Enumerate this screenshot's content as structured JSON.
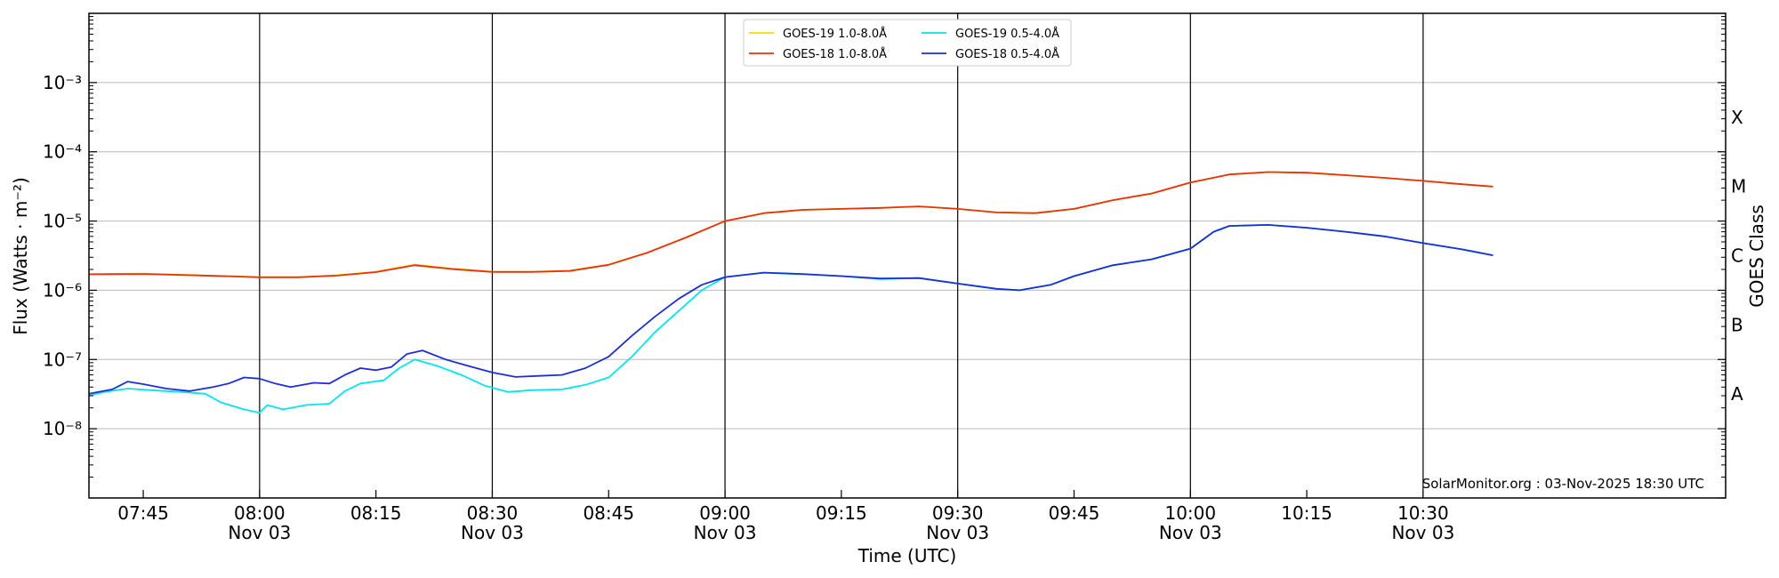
{
  "chart_data": {
    "type": "line",
    "ylabel": "Flux (Watts · m⁻²)",
    "xlabel": "Time (UTC)",
    "right_ylabel": "GOES Class",
    "credit": "SolarMonitor.org : 03-Nov-2025 18:30 UTC",
    "y_scale": "log",
    "ylim": [
      1e-09,
      0.01
    ],
    "xlim": [
      "07:38",
      "11:09"
    ],
    "grid": "horizontal at decades",
    "legend_placement": "top-center",
    "y_ticks": [
      {
        "value": 1e-08,
        "label": "10⁻⁸"
      },
      {
        "value": 1e-07,
        "label": "10⁻⁷"
      },
      {
        "value": 1e-06,
        "label": "10⁻⁶"
      },
      {
        "value": 1e-05,
        "label": "10⁻⁵"
      },
      {
        "value": 0.0001,
        "label": "10⁻⁴"
      },
      {
        "value": 0.001,
        "label": "10⁻³"
      }
    ],
    "goes_classes": [
      {
        "label": "A",
        "value": 3.16e-08
      },
      {
        "label": "B",
        "value": 3.16e-07
      },
      {
        "label": "C",
        "value": 3.16e-06
      },
      {
        "label": "M",
        "value": 3.16e-05
      },
      {
        "label": "X",
        "value": 0.000316
      }
    ],
    "x_ticks": [
      {
        "time": "07:45",
        "label": "07:45",
        "sub": "",
        "day_line": false
      },
      {
        "time": "08:00",
        "label": "08:00",
        "sub": "Nov 03",
        "day_line": true
      },
      {
        "time": "08:15",
        "label": "08:15",
        "sub": "",
        "day_line": false
      },
      {
        "time": "08:30",
        "label": "08:30",
        "sub": "Nov 03",
        "day_line": true
      },
      {
        "time": "08:45",
        "label": "08:45",
        "sub": "",
        "day_line": false
      },
      {
        "time": "09:00",
        "label": "09:00",
        "sub": "Nov 03",
        "day_line": true
      },
      {
        "time": "09:15",
        "label": "09:15",
        "sub": "",
        "day_line": false
      },
      {
        "time": "09:30",
        "label": "09:30",
        "sub": "Nov 03",
        "day_line": true
      },
      {
        "time": "09:45",
        "label": "09:45",
        "sub": "",
        "day_line": false
      },
      {
        "time": "10:00",
        "label": "10:00",
        "sub": "Nov 03",
        "day_line": true
      },
      {
        "time": "10:15",
        "label": "10:15",
        "sub": "",
        "day_line": false
      },
      {
        "time": "10:30",
        "label": "10:30",
        "sub": "Nov 03",
        "day_line": true
      }
    ],
    "series": [
      {
        "name": "GOES-19 1.0-8.0Å",
        "color": "#ffd700",
        "x": [
          "07:38",
          "07:45",
          "07:52",
          "08:00",
          "08:05",
          "08:10",
          "08:15",
          "08:20",
          "08:25",
          "08:30",
          "08:35",
          "08:40",
          "08:45",
          "08:50",
          "08:55",
          "09:00",
          "09:05",
          "09:10",
          "09:15",
          "09:20",
          "09:25",
          "09:30",
          "09:35",
          "09:40",
          "09:45",
          "09:50",
          "09:55",
          "10:00",
          "10:05",
          "10:10",
          "10:15",
          "10:20",
          "10:25",
          "10:30",
          "10:35",
          "10:39"
        ],
        "values": [
          1.72e-06,
          1.74e-06,
          1.65e-06,
          1.55e-06,
          1.55e-06,
          1.65e-06,
          1.85e-06,
          2.35e-06,
          2.05e-06,
          1.85e-06,
          1.85e-06,
          1.92e-06,
          2.35e-06,
          3.5e-06,
          5.8e-06,
          1e-05,
          1.3e-05,
          1.45e-05,
          1.5e-05,
          1.55e-05,
          1.63e-05,
          1.5e-05,
          1.33e-05,
          1.3e-05,
          1.5e-05,
          2e-05,
          2.5e-05,
          3.6e-05,
          4.7e-05,
          5.1e-05,
          5e-05,
          4.6e-05,
          4.2e-05,
          3.8e-05,
          3.4e-05,
          3.15e-05
        ]
      },
      {
        "name": "GOES-18 1.0-8.0Å",
        "color": "#e8320c",
        "x": [
          "07:38",
          "07:45",
          "07:52",
          "08:00",
          "08:05",
          "08:10",
          "08:15",
          "08:20",
          "08:25",
          "08:30",
          "08:35",
          "08:40",
          "08:45",
          "08:50",
          "08:55",
          "09:00",
          "09:05",
          "09:10",
          "09:15",
          "09:20",
          "09:25",
          "09:30",
          "09:35",
          "09:40",
          "09:45",
          "09:50",
          "09:55",
          "10:00",
          "10:05",
          "10:10",
          "10:15",
          "10:20",
          "10:25",
          "10:30",
          "10:35",
          "10:39"
        ],
        "values": [
          1.7e-06,
          1.72e-06,
          1.64e-06,
          1.54e-06,
          1.54e-06,
          1.63e-06,
          1.83e-06,
          2.3e-06,
          2.02e-06,
          1.84e-06,
          1.84e-06,
          1.9e-06,
          2.33e-06,
          3.5e-06,
          5.8e-06,
          1e-05,
          1.3e-05,
          1.45e-05,
          1.5e-05,
          1.55e-05,
          1.63e-05,
          1.5e-05,
          1.33e-05,
          1.3e-05,
          1.5e-05,
          2e-05,
          2.5e-05,
          3.6e-05,
          4.7e-05,
          5.1e-05,
          5e-05,
          4.6e-05,
          4.2e-05,
          3.8e-05,
          3.4e-05,
          3.15e-05
        ]
      },
      {
        "name": "GOES-19 0.5-4.0Å",
        "color": "#00e5ee",
        "x": [
          "07:38",
          "07:40",
          "07:43",
          "07:46",
          "07:50",
          "07:53",
          "07:55",
          "07:58",
          "08:00",
          "08:01",
          "08:03",
          "08:06",
          "08:09",
          "08:11",
          "08:13",
          "08:16",
          "08:18",
          "08:20",
          "08:23",
          "08:26",
          "08:29",
          "08:32",
          "08:35",
          "08:39",
          "08:42",
          "08:45",
          "08:48",
          "08:51",
          "08:54",
          "08:57",
          "09:00",
          "09:05",
          "09:10",
          "09:15",
          "09:20",
          "09:25",
          "09:30",
          "09:35",
          "09:38",
          "09:42",
          "09:45",
          "09:50",
          "09:55",
          "10:00",
          "10:03",
          "10:05",
          "10:10",
          "10:15",
          "10:20",
          "10:25",
          "10:30",
          "10:35",
          "10:39"
        ],
        "values": [
          3e-08,
          3.4e-08,
          3.8e-08,
          3.6e-08,
          3.4e-08,
          3.2e-08,
          2.4e-08,
          1.9e-08,
          1.7e-08,
          2.2e-08,
          1.9e-08,
          2.2e-08,
          2.3e-08,
          3.5e-08,
          4.5e-08,
          5e-08,
          7.5e-08,
          1e-07,
          8e-08,
          6e-08,
          4.2e-08,
          3.4e-08,
          3.6e-08,
          3.7e-08,
          4.3e-08,
          5.5e-08,
          1.1e-07,
          2.5e-07,
          5e-07,
          1e-06,
          1.55e-06,
          1.8e-06,
          1.7e-06,
          1.6e-06,
          1.45e-06,
          1.5e-06,
          1.25e-06,
          1.05e-06,
          1e-06,
          1.2e-06,
          1.6e-06,
          2.3e-06,
          2.8e-06,
          4e-06,
          7e-06,
          8.5e-06,
          8.8e-06,
          8e-06,
          7e-06,
          6e-06,
          4.8e-06,
          3.9e-06,
          3.2e-06
        ]
      },
      {
        "name": "GOES-18 0.5-4.0Å",
        "color": "#1e2ed6",
        "x": [
          "07:38",
          "07:41",
          "07:43",
          "07:45",
          "07:48",
          "07:51",
          "07:54",
          "07:56",
          "07:58",
          "08:00",
          "08:02",
          "08:04",
          "08:07",
          "08:09",
          "08:11",
          "08:13",
          "08:15",
          "08:17",
          "08:19",
          "08:21",
          "08:24",
          "08:27",
          "08:30",
          "08:33",
          "08:36",
          "08:39",
          "08:42",
          "08:45",
          "08:48",
          "08:51",
          "08:54",
          "08:57",
          "09:00",
          "09:05",
          "09:10",
          "09:15",
          "09:20",
          "09:25",
          "09:30",
          "09:35",
          "09:38",
          "09:42",
          "09:45",
          "09:50",
          "09:55",
          "10:00",
          "10:03",
          "10:05",
          "10:10",
          "10:15",
          "10:20",
          "10:25",
          "10:30",
          "10:35",
          "10:39"
        ],
        "values": [
          3.2e-08,
          3.7e-08,
          4.8e-08,
          4.4e-08,
          3.8e-08,
          3.5e-08,
          4e-08,
          4.5e-08,
          5.5e-08,
          5.3e-08,
          4.5e-08,
          4e-08,
          4.6e-08,
          4.5e-08,
          6e-08,
          7.5e-08,
          7e-08,
          7.8e-08,
          1.2e-07,
          1.35e-07,
          1e-07,
          8e-08,
          6.5e-08,
          5.6e-08,
          5.8e-08,
          6e-08,
          7.5e-08,
          1.1e-07,
          2.2e-07,
          4.2e-07,
          7.5e-07,
          1.2e-06,
          1.55e-06,
          1.8e-06,
          1.72e-06,
          1.6e-06,
          1.48e-06,
          1.5e-06,
          1.25e-06,
          1.05e-06,
          1e-06,
          1.2e-06,
          1.6e-06,
          2.3e-06,
          2.8e-06,
          4e-06,
          7e-06,
          8.5e-06,
          8.8e-06,
          8e-06,
          7e-06,
          6e-06,
          4.8e-06,
          3.9e-06,
          3.2e-06
        ]
      }
    ]
  }
}
